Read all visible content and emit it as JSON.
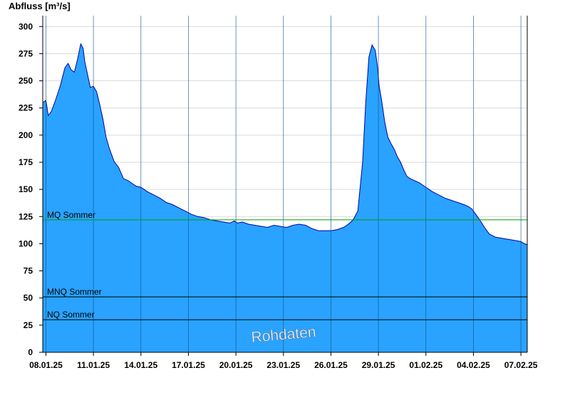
{
  "chart_data": {
    "type": "area",
    "title": "",
    "ylabel": "Abfluss [m³/s]",
    "xlabel": "",
    "ylim": [
      0,
      310
    ],
    "yticks": [
      0,
      25,
      50,
      75,
      100,
      125,
      150,
      175,
      200,
      225,
      250,
      275,
      300
    ],
    "xlim": [
      -0.2,
      30.4
    ],
    "xticks": [
      {
        "x": 0,
        "label": "08.01.25"
      },
      {
        "x": 3,
        "label": "11.01.25"
      },
      {
        "x": 6,
        "label": "14.01.25"
      },
      {
        "x": 9,
        "label": "17.01.25"
      },
      {
        "x": 12,
        "label": "20.01.25"
      },
      {
        "x": 15,
        "label": "23.01.25"
      },
      {
        "x": 18,
        "label": "26.01.25"
      },
      {
        "x": 21,
        "label": "29.01.25"
      },
      {
        "x": 24,
        "label": "01.02.25"
      },
      {
        "x": 27,
        "label": "04.02.25"
      },
      {
        "x": 30,
        "label": "07.02.25"
      }
    ],
    "grid": true,
    "fill_color": "#29a3ff",
    "line_color": "#0000aa",
    "series": [
      {
        "name": "",
        "x": [
          -0.2,
          0.0,
          0.15,
          0.35,
          0.6,
          0.9,
          1.2,
          1.4,
          1.6,
          1.8,
          2.0,
          2.2,
          2.35,
          2.45,
          2.6,
          2.8,
          3.0,
          3.2,
          3.4,
          3.6,
          3.8,
          4.0,
          4.3,
          4.6,
          4.9,
          5.2,
          5.4,
          5.7,
          6.0,
          6.4,
          6.8,
          7.2,
          7.6,
          8.0,
          8.4,
          8.8,
          9.2,
          9.6,
          10.0,
          10.4,
          10.8,
          11.2,
          11.6,
          11.9,
          12.1,
          12.4,
          12.8,
          13.2,
          13.6,
          14.0,
          14.4,
          14.8,
          15.2,
          15.6,
          16.0,
          16.4,
          16.8,
          17.2,
          17.6,
          18.0,
          18.4,
          18.8,
          19.1,
          19.4,
          19.7,
          20.0,
          20.2,
          20.4,
          20.6,
          20.8,
          20.95,
          21.05,
          21.2,
          21.4,
          21.6,
          21.8,
          22.0,
          22.2,
          22.4,
          22.6,
          22.8,
          23.0,
          23.3,
          23.6,
          24.0,
          24.4,
          24.8,
          25.2,
          25.6,
          26.0,
          26.4,
          26.7,
          26.9,
          27.1,
          27.4,
          27.7,
          28.0,
          28.4,
          28.8,
          29.2,
          29.6,
          30.0,
          30.2,
          30.4
        ],
        "y": [
          230,
          232,
          218,
          222,
          232,
          245,
          262,
          266,
          260,
          258,
          270,
          284,
          280,
          268,
          258,
          244,
          245,
          240,
          228,
          215,
          198,
          188,
          176,
          170,
          160,
          158,
          156,
          153,
          152,
          148,
          145,
          142,
          138,
          136,
          133,
          130,
          127,
          125,
          124,
          122,
          121,
          120,
          119,
          121,
          119,
          120,
          118,
          117,
          116,
          115,
          117,
          116,
          115,
          117,
          118,
          117,
          114,
          112,
          112,
          112,
          113,
          115,
          118,
          122,
          130,
          175,
          230,
          272,
          283,
          278,
          262,
          245,
          232,
          212,
          198,
          192,
          187,
          180,
          175,
          168,
          162,
          160,
          158,
          156,
          152,
          148,
          145,
          142,
          140,
          138,
          136,
          134,
          132,
          128,
          122,
          115,
          109,
          106,
          105,
          104,
          103,
          102,
          100,
          99
        ]
      }
    ],
    "reference_lines": [
      {
        "label": "MQ Sommer",
        "value": 122,
        "color": "#00a000"
      },
      {
        "label": "MNQ Sommer",
        "value": 51,
        "color": "#000000"
      },
      {
        "label": "NQ Sommer",
        "value": 30,
        "color": "#000000"
      }
    ],
    "watermark": "Rohdaten"
  }
}
